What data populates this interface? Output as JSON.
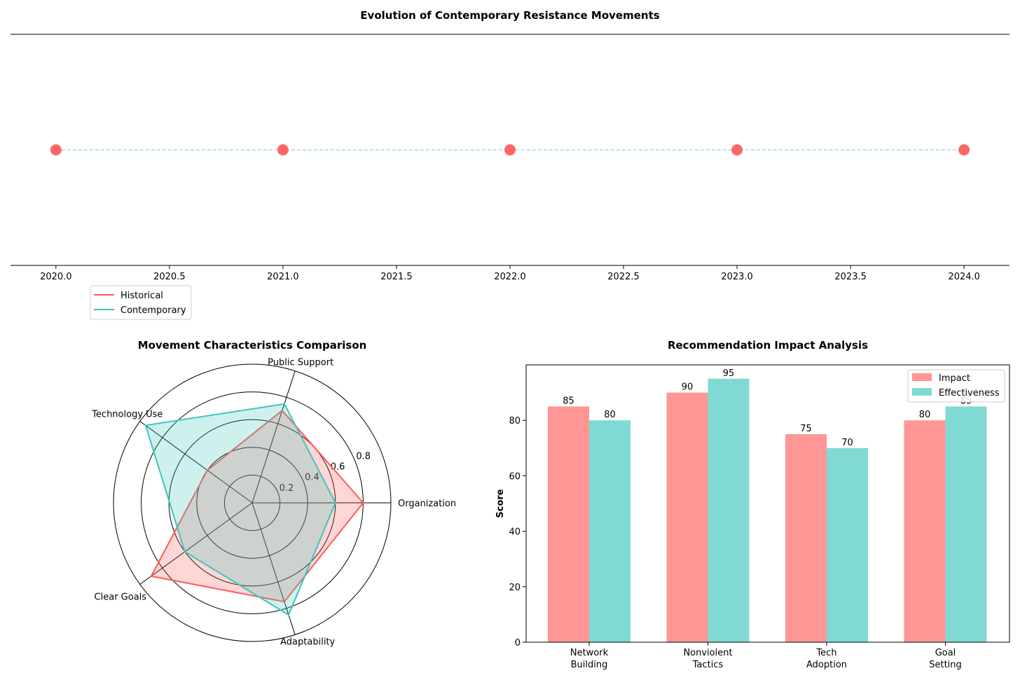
{
  "colors": {
    "historical": "#ff5a5a",
    "contemporary": "#3cc6bd",
    "impact": "#ff9696",
    "effectiveness": "#80dad3",
    "timeline_marker": "#ff6666",
    "timeline_line": "#8fd3de"
  },
  "chart_data": [
    {
      "type": "scatter",
      "title": "Evolution of Contemporary Resistance Movements",
      "x": [
        2020,
        2021,
        2022,
        2023,
        2024
      ],
      "y": [
        0,
        0,
        0,
        0,
        0
      ],
      "xticks": [
        "2020.0",
        "2020.5",
        "2021.0",
        "2021.5",
        "2022.0",
        "2022.5",
        "2023.0",
        "2023.5",
        "2024.0"
      ],
      "xlim": [
        2019.8,
        2024.2
      ],
      "ylim": [
        -1,
        1
      ],
      "connector": "dashed",
      "grid": false
    },
    {
      "type": "radar",
      "title": "Movement Characteristics Comparison",
      "categories": [
        "Organization",
        "Public Support",
        "Technology Use",
        "Clear Goals",
        "Adaptability"
      ],
      "series": [
        {
          "name": "Historical",
          "values": [
            0.8,
            0.7,
            0.4,
            0.9,
            0.75
          ]
        },
        {
          "name": "Contemporary",
          "values": [
            0.6,
            0.75,
            0.95,
            0.6,
            0.85
          ]
        }
      ],
      "rticks": [
        "0.2",
        "0.4",
        "0.6",
        "0.8"
      ],
      "rlim": [
        0,
        1
      ],
      "legend": {
        "position": "upper-left",
        "entries": [
          "Historical",
          "Contemporary"
        ]
      }
    },
    {
      "type": "bar",
      "title": "Recommendation Impact Analysis",
      "categories": [
        "Network\nBuilding",
        "Nonviolent\nTactics",
        "Tech\nAdoption",
        "Goal\nSetting"
      ],
      "series": [
        {
          "name": "Impact",
          "values": [
            85,
            90,
            75,
            80
          ]
        },
        {
          "name": "Effectiveness",
          "values": [
            80,
            95,
            70,
            85
          ]
        }
      ],
      "ylabel": "Score",
      "ylim": [
        0,
        100
      ],
      "yticks": [
        "0",
        "20",
        "40",
        "60",
        "80"
      ],
      "legend": {
        "position": "top-right"
      }
    }
  ]
}
